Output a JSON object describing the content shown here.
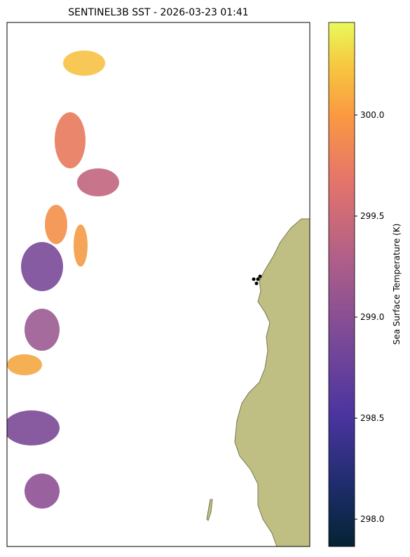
{
  "chart_data": {
    "type": "map",
    "title": "SENTINEL3B SST - 2026-03-23 01:41",
    "colorbar": {
      "label": "Sea Surface Temperature (K)",
      "clim": [
        297.865,
        300.458
      ],
      "ticks": [
        {
          "value": 298,
          "label": "298.0"
        },
        {
          "value": 298.5,
          "label": "298.5"
        },
        {
          "value": 299,
          "label": "299.0"
        },
        {
          "value": 299.5,
          "label": "299.5"
        },
        {
          "value": 300,
          "label": "300.0"
        }
      ]
    }
  }
}
